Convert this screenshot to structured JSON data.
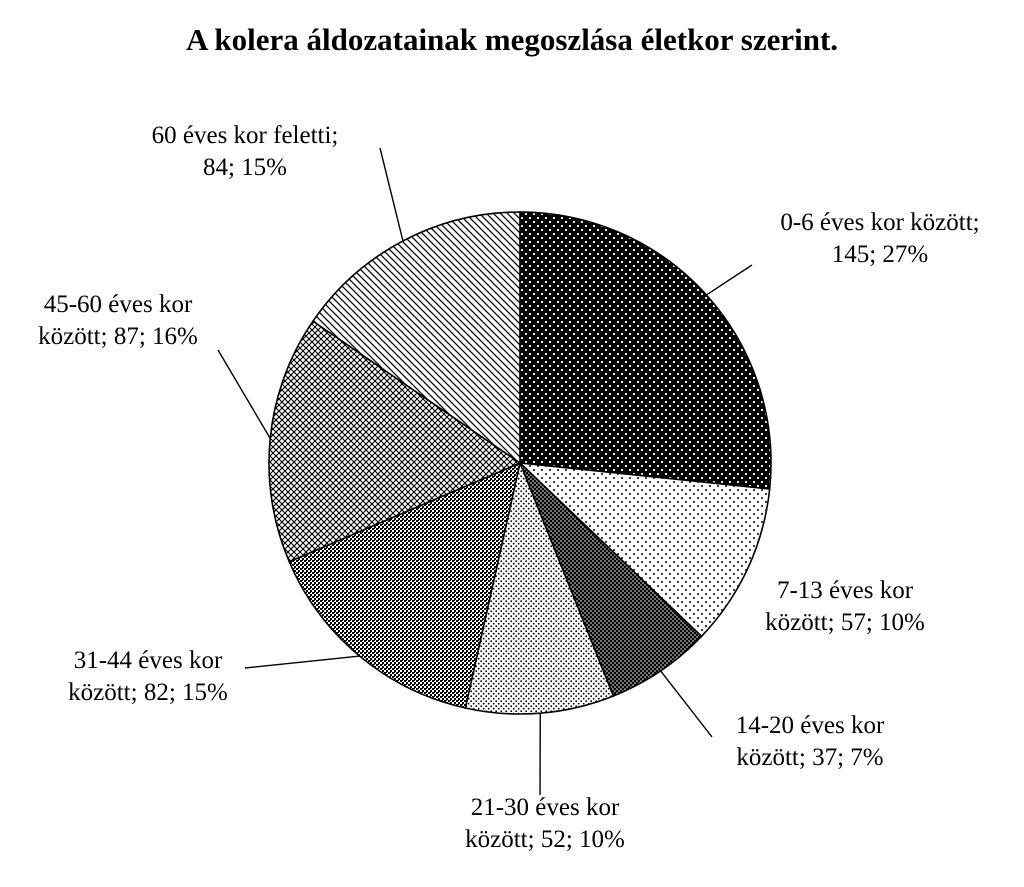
{
  "chart_data": {
    "type": "pie",
    "title": "A  kolera áldozatainak megoszlása életkor szerint.",
    "start": "top, clockwise",
    "slices": [
      {
        "name": "0-6 éves kor között",
        "value": 145,
        "percent": "27%",
        "label_lines": [
          "0-6 éves kor között;",
          "145; 27%"
        ],
        "pattern": "dots-on-black"
      },
      {
        "name": "7-13 éves kor között",
        "value": 57,
        "percent": "10%",
        "label_lines": [
          "7-13 éves kor",
          "között; 57; 10%"
        ],
        "pattern": "sparse-dots"
      },
      {
        "name": "14-20 éves kor között",
        "value": 37,
        "percent": "7%",
        "label_lines": [
          "14-20 éves kor",
          "között; 37; 7%"
        ],
        "pattern": "dense-dots-dark"
      },
      {
        "name": "21-30 éves kor között",
        "value": 52,
        "percent": "10%",
        "label_lines": [
          "21-30 éves kor",
          "között; 52; 10%"
        ],
        "pattern": "fine-dots"
      },
      {
        "name": "31-44 éves kor között",
        "value": 82,
        "percent": "15%",
        "label_lines": [
          "31-44 éves kor",
          "között; 82; 15%"
        ],
        "pattern": "dark-checker"
      },
      {
        "name": "45-60 éves kor között",
        "value": 87,
        "percent": "16%",
        "label_lines": [
          "45-60 éves kor",
          "között; 87; 16%"
        ],
        "pattern": "diagonal-cross"
      },
      {
        "name": "60 éves kor feletti",
        "value": 84,
        "percent": "15%",
        "label_lines": [
          "60 éves kor feletti;",
          "84; 15%"
        ],
        "pattern": "diagonal-stripes"
      }
    ]
  }
}
